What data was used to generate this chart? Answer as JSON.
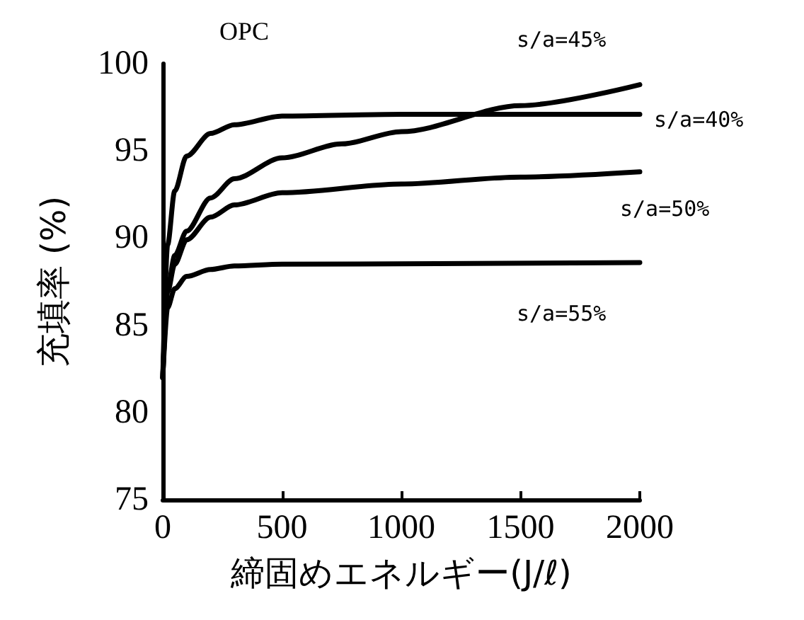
{
  "chart_data": {
    "type": "line",
    "title": "OPC",
    "xlabel": "締固めエネルギー(J/ℓ)",
    "ylabel": "充填率 (%)",
    "xlim": [
      0,
      2000
    ],
    "xticks": [
      0,
      500,
      1000,
      1500,
      2000
    ],
    "ylim": [
      75,
      100
    ],
    "yticks": [
      75,
      80,
      85,
      90,
      95,
      100
    ],
    "grid": false,
    "legend": false,
    "marker": "none",
    "line_style": "solid",
    "series": [
      {
        "name": "s/a=45%",
        "color": "#000000",
        "x": [
          0,
          20,
          50,
          100,
          200,
          300,
          500,
          750,
          1000,
          1500,
          2000
        ],
        "values": [
          82,
          87.1,
          89.0,
          90.4,
          92.3,
          93.4,
          94.6,
          95.4,
          96.1,
          97.6,
          98.8
        ]
      },
      {
        "name": "s/a=40%",
        "color": "#000000",
        "x": [
          0,
          20,
          50,
          100,
          200,
          300,
          500,
          1000,
          2000
        ],
        "values": [
          82,
          89.6,
          92.7,
          94.7,
          96.0,
          96.5,
          97.0,
          97.1,
          97.1
        ]
      },
      {
        "name": "s/a=50%",
        "color": "#000000",
        "x": [
          0,
          20,
          50,
          100,
          200,
          300,
          500,
          1000,
          1500,
          2000
        ],
        "values": [
          82,
          86.9,
          88.5,
          89.9,
          91.2,
          91.9,
          92.6,
          93.1,
          93.5,
          93.8
        ]
      },
      {
        "name": "s/a=55%",
        "color": "#000000",
        "x": [
          0,
          20,
          50,
          100,
          200,
          300,
          500,
          2000
        ],
        "values": [
          82,
          86.0,
          87.1,
          87.8,
          88.2,
          88.4,
          88.5,
          88.6
        ]
      }
    ]
  }
}
